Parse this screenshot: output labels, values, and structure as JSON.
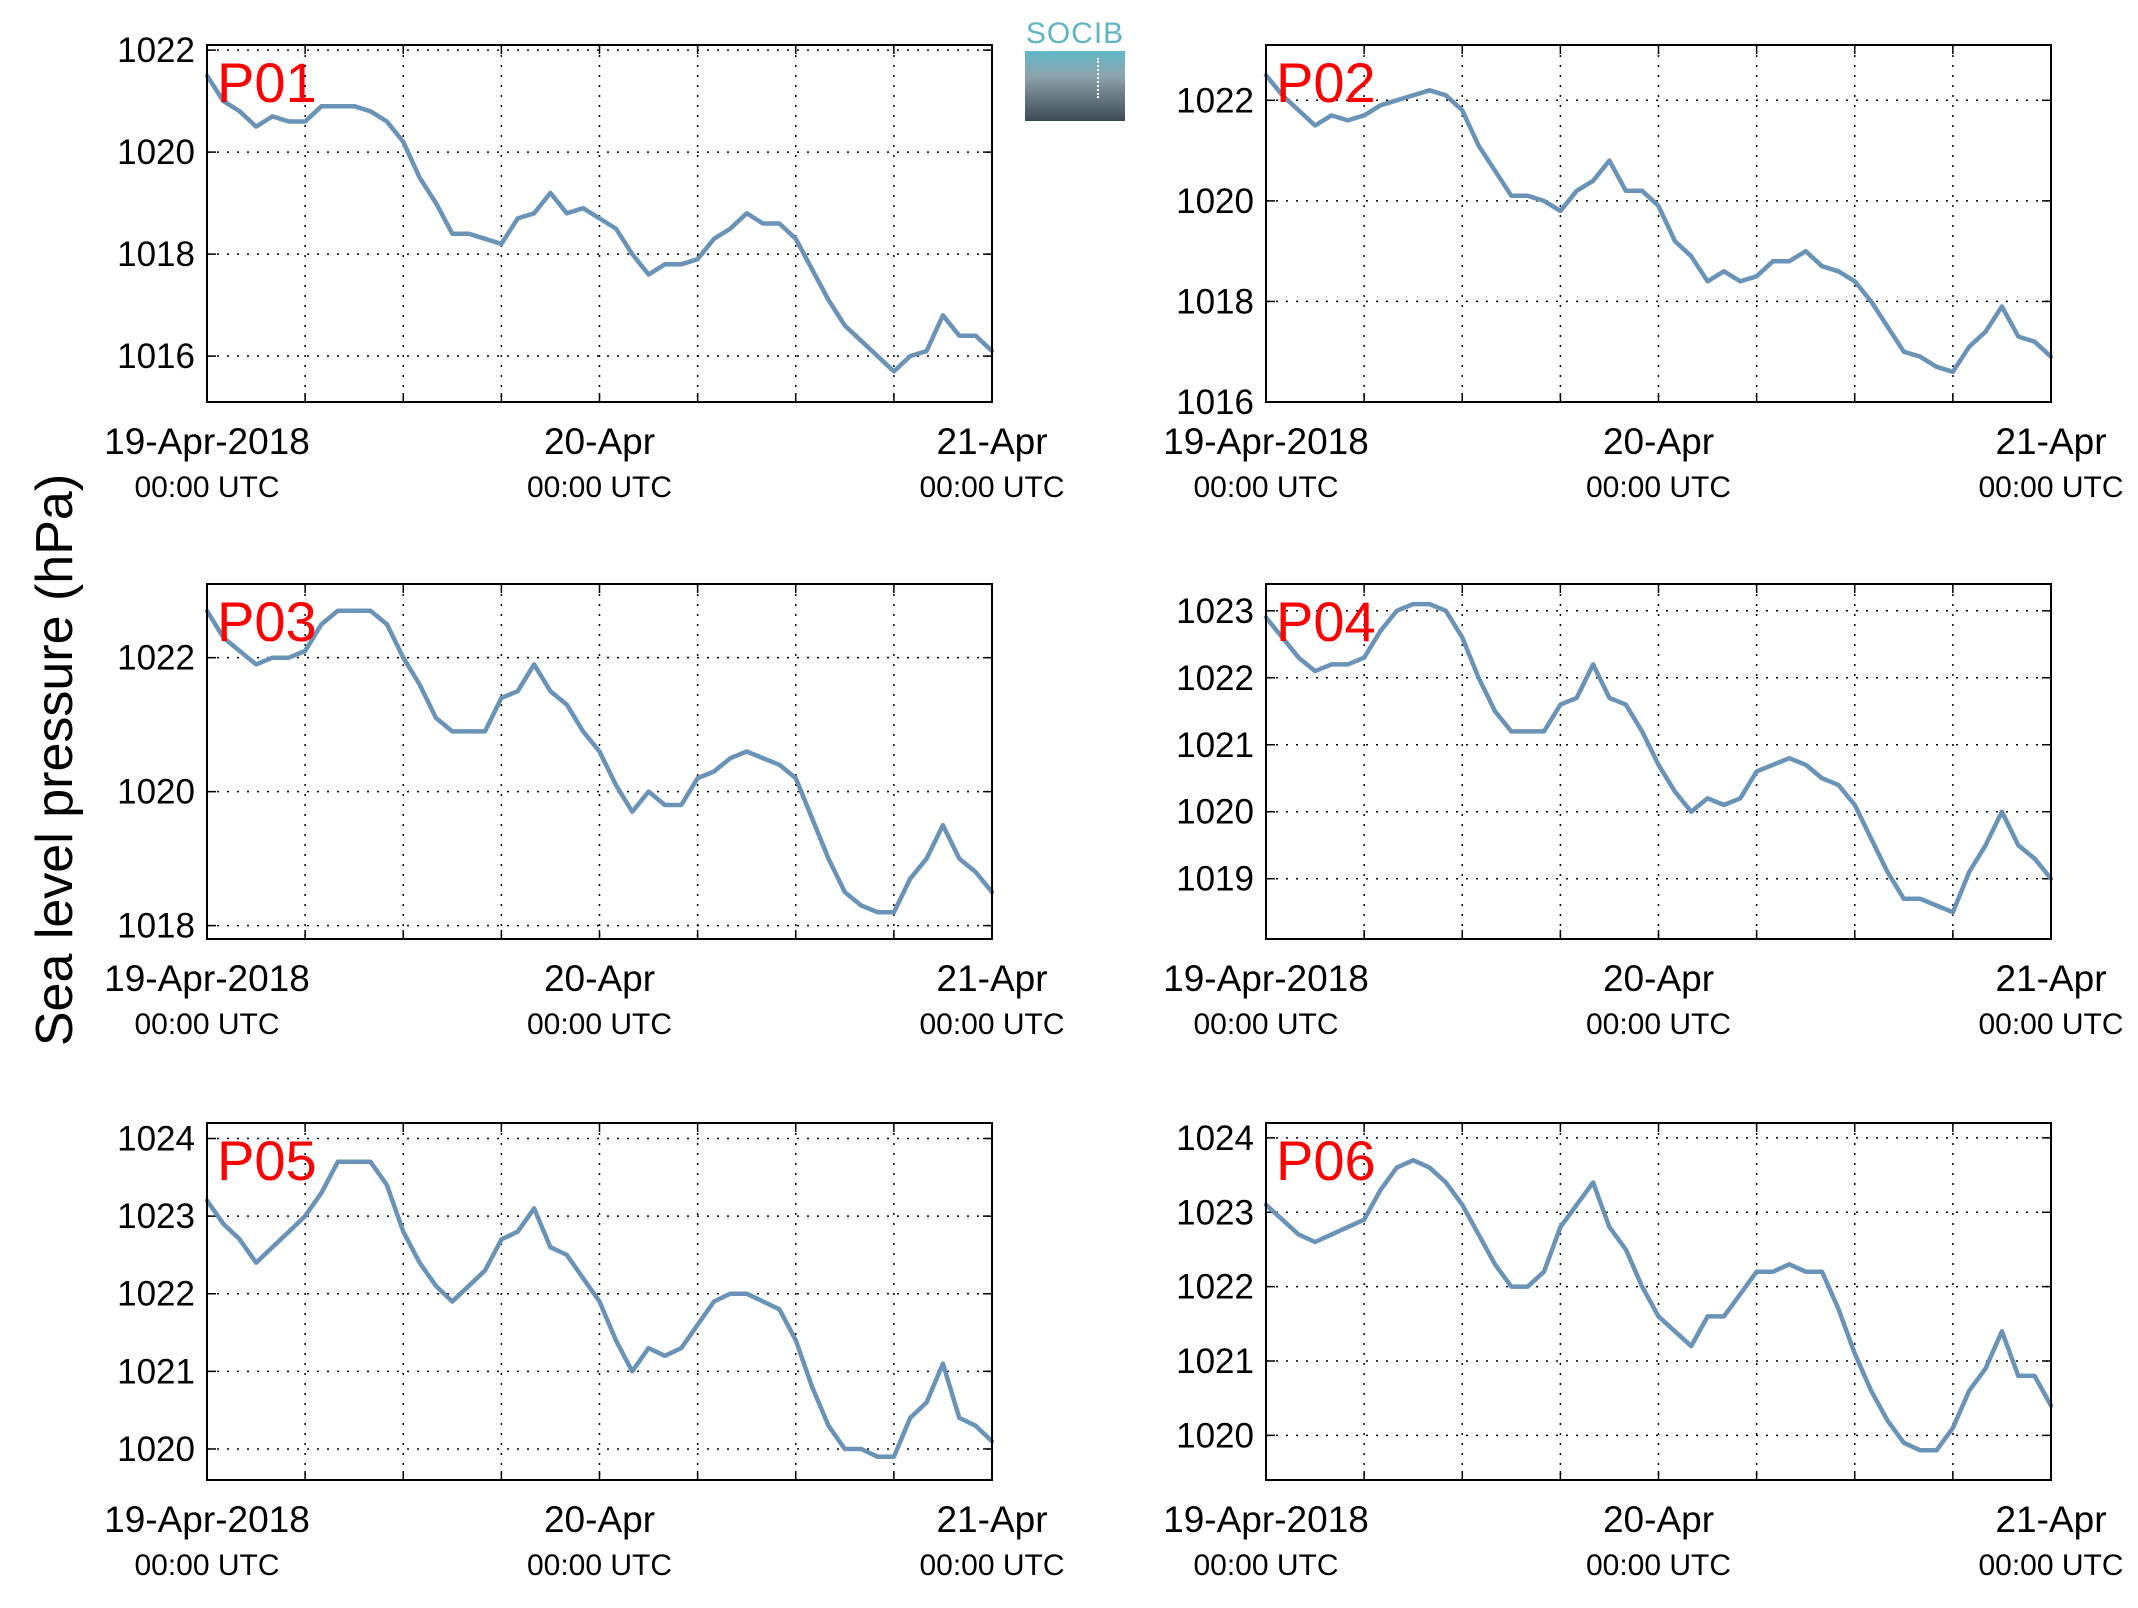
{
  "ylabel": "Sea level pressure (hPa)",
  "logo_text": "SOCIB",
  "colors": {
    "line": "#6a93b8",
    "label": "#ff0000",
    "grid": "#000000"
  },
  "xticks": [
    {
      "t": 0,
      "date": "19-Apr-2018",
      "time": "00:00 UTC"
    },
    {
      "t": 24,
      "date": "20-Apr",
      "time": "00:00 UTC"
    },
    {
      "t": 48,
      "date": "21-Apr",
      "time": "00:00 UTC"
    }
  ],
  "chart_data": [
    {
      "type": "line",
      "name": "P01",
      "xlim": [
        0,
        48
      ],
      "ylim": [
        1015.1,
        1022.1
      ],
      "yticks": [
        1016,
        1018,
        1020,
        1022
      ],
      "x": [
        0,
        1,
        2,
        3,
        4,
        5,
        6,
        7,
        8,
        9,
        10,
        11,
        12,
        13,
        14,
        15,
        16,
        17,
        18,
        19,
        20,
        21,
        22,
        23,
        24,
        25,
        26,
        27,
        28,
        29,
        30,
        31,
        32,
        33,
        34,
        35,
        36,
        37,
        38,
        39,
        40,
        41,
        42,
        43,
        44,
        45,
        46,
        47,
        48
      ],
      "y": [
        1021.5,
        1021.0,
        1020.8,
        1020.5,
        1020.7,
        1020.6,
        1020.6,
        1020.9,
        1020.9,
        1020.9,
        1020.8,
        1020.6,
        1020.2,
        1019.5,
        1019.0,
        1018.4,
        1018.4,
        1018.3,
        1018.2,
        1018.7,
        1018.8,
        1019.2,
        1018.8,
        1018.9,
        1018.7,
        1018.5,
        1018.0,
        1017.6,
        1017.8,
        1017.8,
        1017.9,
        1018.3,
        1018.5,
        1018.8,
        1018.6,
        1018.6,
        1018.3,
        1017.7,
        1017.1,
        1016.6,
        1016.3,
        1016.0,
        1015.7,
        1016.0,
        1016.1,
        1016.8,
        1016.4,
        1016.4,
        1016.1
      ]
    },
    {
      "type": "line",
      "name": "P02",
      "xlim": [
        0,
        48
      ],
      "ylim": [
        1016.0,
        1023.1
      ],
      "yticks": [
        1016,
        1018,
        1020,
        1022
      ],
      "x": [
        0,
        1,
        2,
        3,
        4,
        5,
        6,
        7,
        8,
        9,
        10,
        11,
        12,
        13,
        14,
        15,
        16,
        17,
        18,
        19,
        20,
        21,
        22,
        23,
        24,
        25,
        26,
        27,
        28,
        29,
        30,
        31,
        32,
        33,
        34,
        35,
        36,
        37,
        38,
        39,
        40,
        41,
        42,
        43,
        44,
        45,
        46,
        47,
        48
      ],
      "y": [
        1022.5,
        1022.1,
        1021.8,
        1021.5,
        1021.7,
        1021.6,
        1021.7,
        1021.9,
        1022.0,
        1022.1,
        1022.2,
        1022.1,
        1021.8,
        1021.1,
        1020.6,
        1020.1,
        1020.1,
        1020.0,
        1019.8,
        1020.2,
        1020.4,
        1020.8,
        1020.2,
        1020.2,
        1019.9,
        1019.2,
        1018.9,
        1018.4,
        1018.6,
        1018.4,
        1018.5,
        1018.8,
        1018.8,
        1019.0,
        1018.7,
        1018.6,
        1018.4,
        1018.0,
        1017.5,
        1017.0,
        1016.9,
        1016.7,
        1016.6,
        1017.1,
        1017.4,
        1017.9,
        1017.3,
        1017.2,
        1016.9
      ]
    },
    {
      "type": "line",
      "name": "P03",
      "xlim": [
        0,
        48
      ],
      "ylim": [
        1017.8,
        1023.1
      ],
      "yticks": [
        1018,
        1020,
        1022
      ],
      "x": [
        0,
        1,
        2,
        3,
        4,
        5,
        6,
        7,
        8,
        9,
        10,
        11,
        12,
        13,
        14,
        15,
        16,
        17,
        18,
        19,
        20,
        21,
        22,
        23,
        24,
        25,
        26,
        27,
        28,
        29,
        30,
        31,
        32,
        33,
        34,
        35,
        36,
        37,
        38,
        39,
        40,
        41,
        42,
        43,
        44,
        45,
        46,
        47,
        48
      ],
      "y": [
        1022.7,
        1022.3,
        1022.1,
        1021.9,
        1022.0,
        1022.0,
        1022.1,
        1022.5,
        1022.7,
        1022.7,
        1022.7,
        1022.5,
        1022.0,
        1021.6,
        1021.1,
        1020.9,
        1020.9,
        1020.9,
        1021.4,
        1021.5,
        1021.9,
        1021.5,
        1021.3,
        1020.9,
        1020.6,
        1020.1,
        1019.7,
        1020.0,
        1019.8,
        1019.8,
        1020.2,
        1020.3,
        1020.5,
        1020.6,
        1020.5,
        1020.4,
        1020.2,
        1019.6,
        1019.0,
        1018.5,
        1018.3,
        1018.2,
        1018.2,
        1018.7,
        1019.0,
        1019.5,
        1019.0,
        1018.8,
        1018.5
      ]
    },
    {
      "type": "line",
      "name": "P04",
      "xlim": [
        0,
        48
      ],
      "ylim": [
        1018.1,
        1023.4
      ],
      "yticks": [
        1019,
        1020,
        1021,
        1022,
        1023
      ],
      "x": [
        0,
        1,
        2,
        3,
        4,
        5,
        6,
        7,
        8,
        9,
        10,
        11,
        12,
        13,
        14,
        15,
        16,
        17,
        18,
        19,
        20,
        21,
        22,
        23,
        24,
        25,
        26,
        27,
        28,
        29,
        30,
        31,
        32,
        33,
        34,
        35,
        36,
        37,
        38,
        39,
        40,
        41,
        42,
        43,
        44,
        45,
        46,
        47,
        48
      ],
      "y": [
        1022.9,
        1022.6,
        1022.3,
        1022.1,
        1022.2,
        1022.2,
        1022.3,
        1022.7,
        1023.0,
        1023.1,
        1023.1,
        1023.0,
        1022.6,
        1022.0,
        1021.5,
        1021.2,
        1021.2,
        1021.2,
        1021.6,
        1021.7,
        1022.2,
        1021.7,
        1021.6,
        1021.2,
        1020.7,
        1020.3,
        1020.0,
        1020.2,
        1020.1,
        1020.2,
        1020.6,
        1020.7,
        1020.8,
        1020.7,
        1020.5,
        1020.4,
        1020.1,
        1019.6,
        1019.1,
        1018.7,
        1018.7,
        1018.6,
        1018.5,
        1019.1,
        1019.5,
        1020.0,
        1019.5,
        1019.3,
        1019.0
      ]
    },
    {
      "type": "line",
      "name": "P05",
      "xlim": [
        0,
        48
      ],
      "ylim": [
        1019.6,
        1024.2
      ],
      "yticks": [
        1020,
        1021,
        1022,
        1023,
        1024
      ],
      "x": [
        0,
        1,
        2,
        3,
        4,
        5,
        6,
        7,
        8,
        9,
        10,
        11,
        12,
        13,
        14,
        15,
        16,
        17,
        18,
        19,
        20,
        21,
        22,
        23,
        24,
        25,
        26,
        27,
        28,
        29,
        30,
        31,
        32,
        33,
        34,
        35,
        36,
        37,
        38,
        39,
        40,
        41,
        42,
        43,
        44,
        45,
        46,
        47,
        48
      ],
      "y": [
        1023.2,
        1022.9,
        1022.7,
        1022.4,
        1022.6,
        1022.8,
        1023.0,
        1023.3,
        1023.7,
        1023.7,
        1023.7,
        1023.4,
        1022.8,
        1022.4,
        1022.1,
        1021.9,
        1022.1,
        1022.3,
        1022.7,
        1022.8,
        1023.1,
        1022.6,
        1022.5,
        1022.2,
        1021.9,
        1021.4,
        1021.0,
        1021.3,
        1021.2,
        1021.3,
        1021.6,
        1021.9,
        1022.0,
        1022.0,
        1021.9,
        1021.8,
        1021.4,
        1020.8,
        1020.3,
        1020.0,
        1020.0,
        1019.9,
        1019.9,
        1020.4,
        1020.6,
        1021.1,
        1020.4,
        1020.3,
        1020.1
      ]
    },
    {
      "type": "line",
      "name": "P06",
      "xlim": [
        0,
        48
      ],
      "ylim": [
        1019.4,
        1024.2
      ],
      "yticks": [
        1020,
        1021,
        1022,
        1023,
        1024
      ],
      "x": [
        0,
        1,
        2,
        3,
        4,
        5,
        6,
        7,
        8,
        9,
        10,
        11,
        12,
        13,
        14,
        15,
        16,
        17,
        18,
        19,
        20,
        21,
        22,
        23,
        24,
        25,
        26,
        27,
        28,
        29,
        30,
        31,
        32,
        33,
        34,
        35,
        36,
        37,
        38,
        39,
        40,
        41,
        42,
        43,
        44,
        45,
        46,
        47,
        48
      ],
      "y": [
        1023.1,
        1022.9,
        1022.7,
        1022.6,
        1022.7,
        1022.8,
        1022.9,
        1023.3,
        1023.6,
        1023.7,
        1023.6,
        1023.4,
        1023.1,
        1022.7,
        1022.3,
        1022.0,
        1022.0,
        1022.2,
        1022.8,
        1023.1,
        1023.4,
        1022.8,
        1022.5,
        1022.0,
        1021.6,
        1021.4,
        1021.2,
        1021.6,
        1021.6,
        1021.9,
        1022.2,
        1022.2,
        1022.3,
        1022.2,
        1022.2,
        1021.7,
        1021.1,
        1020.6,
        1020.2,
        1019.9,
        1019.8,
        1019.8,
        1020.1,
        1020.6,
        1020.9,
        1021.4,
        1020.8,
        1020.8,
        1020.4
      ]
    }
  ]
}
